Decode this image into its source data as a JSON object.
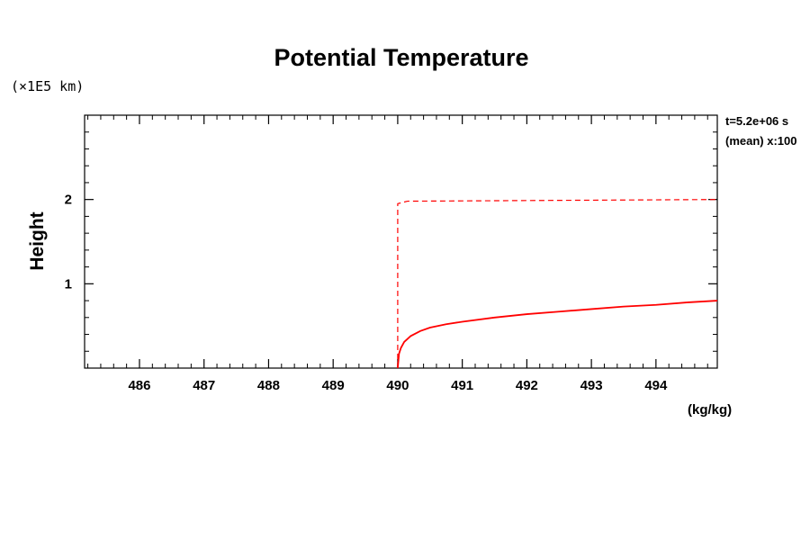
{
  "chart_data": {
    "type": "line",
    "title": "Potential Temperature",
    "y_scale_label": "(×1E5 km)",
    "ylabel": "Height",
    "xunit": "(kg/kg)",
    "annotations": [
      "t=5.2e+06 s",
      "(mean) x:100"
    ],
    "xlim": [
      485.15,
      494.95
    ],
    "ylim": [
      0,
      3
    ],
    "xticks": [
      486,
      487,
      488,
      489,
      490,
      491,
      492,
      493,
      494
    ],
    "xtick_labels": [
      "486",
      "487",
      "488",
      "489",
      "490",
      "491",
      "492",
      "493",
      "494"
    ],
    "yticks": [
      1,
      2
    ],
    "ytick_labels": [
      "1",
      "2"
    ],
    "grid": false,
    "series": [
      {
        "style": "solid",
        "color": "#ff0000",
        "x": [
          490.0,
          490.02,
          490.05,
          490.1,
          490.2,
          490.35,
          490.5,
          490.75,
          491.0,
          491.5,
          492.0,
          492.5,
          493.0,
          493.5,
          494.0,
          494.5,
          494.95
        ],
        "y": [
          0.0,
          0.17,
          0.24,
          0.31,
          0.38,
          0.44,
          0.48,
          0.52,
          0.55,
          0.6,
          0.64,
          0.67,
          0.7,
          0.73,
          0.75,
          0.78,
          0.8
        ]
      },
      {
        "style": "dashed",
        "color": "#ff0000",
        "x": [
          490.0,
          490.0,
          490.15,
          494.95
        ],
        "y": [
          0.0,
          1.95,
          1.98,
          2.0
        ]
      }
    ]
  }
}
